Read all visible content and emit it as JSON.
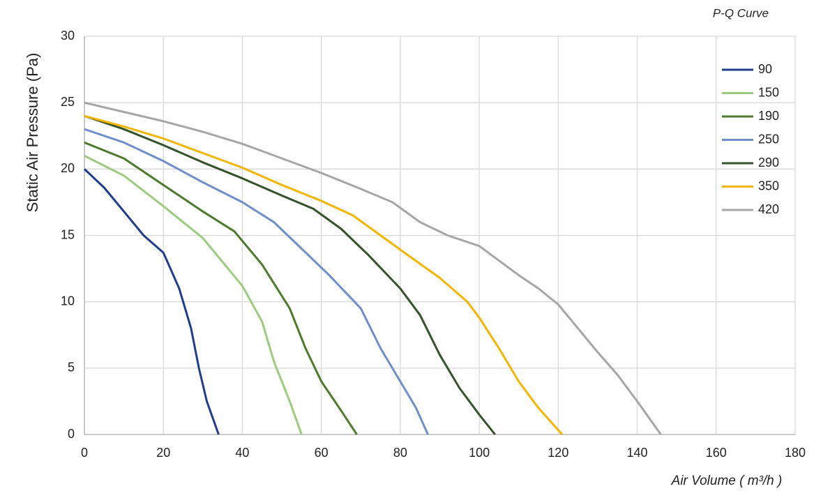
{
  "chart_data": {
    "type": "line",
    "title": "P-Q Curve",
    "x_label": "Air Volume ( m³/h )",
    "y_label": "Static Air Pressure  (Pa)",
    "xlim": [
      0,
      180
    ],
    "xticks": [
      0,
      20,
      40,
      60,
      80,
      100,
      120,
      140,
      160,
      180
    ],
    "ylim": [
      0,
      30
    ],
    "yticks": [
      0,
      5,
      10,
      15,
      20,
      25,
      30
    ],
    "grid": true,
    "legend": "upper right",
    "series": [
      {
        "name": "90",
        "color": "#1f3d8a",
        "x": [
          0,
          5,
          10,
          15,
          20,
          24,
          27,
          29,
          31,
          34
        ],
        "values": [
          20,
          18.6,
          16.8,
          15,
          13.7,
          11,
          8,
          5,
          2.5,
          0
        ]
      },
      {
        "name": "150",
        "color": "#9ccb80",
        "x": [
          0,
          10,
          20,
          30,
          35,
          40,
          45,
          48,
          52,
          55
        ],
        "values": [
          21,
          19.5,
          17.2,
          14.8,
          13,
          11.2,
          8.5,
          5.5,
          2.5,
          0
        ]
      },
      {
        "name": "190",
        "color": "#4e7a30",
        "x": [
          0,
          10,
          20,
          30,
          38,
          45,
          52,
          56,
          60,
          65,
          69
        ],
        "values": [
          22,
          20.8,
          18.8,
          16.8,
          15.3,
          12.8,
          9.5,
          6.5,
          4,
          1.8,
          0
        ]
      },
      {
        "name": "250",
        "color": "#6f8fca",
        "x": [
          0,
          10,
          20,
          30,
          40,
          48,
          55,
          62,
          70,
          75,
          80,
          84,
          87
        ],
        "values": [
          23,
          22,
          20.6,
          19,
          17.5,
          16,
          14,
          12,
          9.5,
          6.5,
          4,
          2,
          0
        ]
      },
      {
        "name": "290",
        "color": "#35532a",
        "x": [
          0,
          10,
          20,
          30,
          40,
          50,
          58,
          65,
          72,
          80,
          85,
          90,
          95,
          100,
          104
        ],
        "values": [
          24,
          23,
          21.8,
          20.5,
          19.3,
          18,
          17,
          15.5,
          13.5,
          11,
          9,
          6,
          3.5,
          1.5,
          0
        ]
      },
      {
        "name": "350",
        "color": "#f2b600",
        "x": [
          0,
          10,
          20,
          30,
          40,
          50,
          60,
          68,
          75,
          82,
          90,
          97,
          100,
          105,
          110,
          115,
          121
        ],
        "values": [
          24,
          23.2,
          22.3,
          21.2,
          20.1,
          18.8,
          17.6,
          16.5,
          15,
          13.5,
          11.8,
          10,
          8.8,
          6.5,
          4,
          2,
          0
        ]
      },
      {
        "name": "420",
        "color": "#a6a6a6",
        "x": [
          0,
          10,
          20,
          30,
          40,
          50,
          60,
          70,
          78,
          85,
          92,
          100,
          110,
          115,
          120,
          125,
          130,
          135,
          140,
          146
        ],
        "values": [
          25,
          24.3,
          23.6,
          22.8,
          21.9,
          20.8,
          19.7,
          18.5,
          17.5,
          16,
          15,
          14.2,
          12,
          11,
          9.8,
          8,
          6.2,
          4.5,
          2.5,
          0
        ]
      }
    ]
  }
}
